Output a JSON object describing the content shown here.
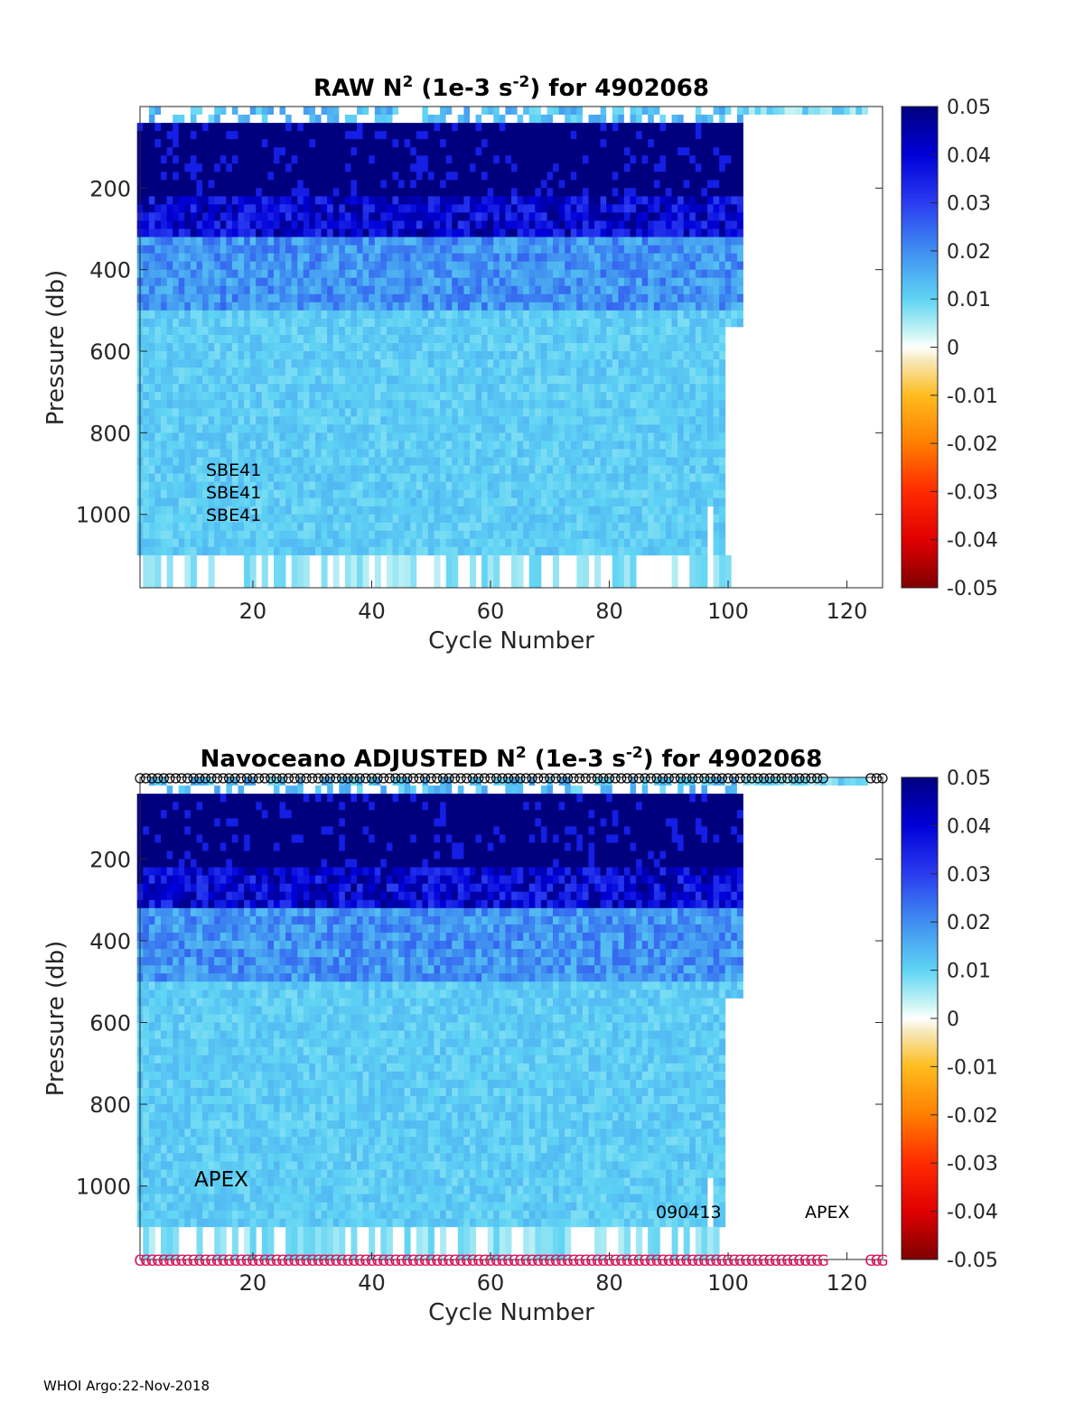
{
  "footer": "WHOI Argo:22-Nov-2018",
  "colorbar": {
    "ticks": [
      "0.05",
      "0.04",
      "0.03",
      "0.02",
      "0.01",
      "0",
      "-0.01",
      "-0.02",
      "-0.03",
      "-0.04",
      "-0.05"
    ],
    "range": [
      -0.05,
      0.05
    ]
  },
  "chart_data": [
    {
      "type": "heatmap",
      "title": {
        "prefix": "RAW N",
        "sup1": "2",
        "mid": " (1e-3 s",
        "sup2": "-2",
        "suffix": ") for 4902068"
      },
      "xlabel": "Cycle Number",
      "ylabel": "Pressure (db)",
      "xlim": [
        1,
        126
      ],
      "ylim": [
        1180,
        0
      ],
      "xticks": [
        "20",
        "40",
        "60",
        "80",
        "100",
        "120"
      ],
      "yticks": [
        "200",
        "400",
        "600",
        "800",
        "1000"
      ],
      "last_cycle": 102,
      "annotations": [
        "SBE41",
        "SBE41",
        "SBE41"
      ],
      "colorscale": "jet-like, dark blue = 0.05, white = 0, dark red = -0.05",
      "profile_by_depth": [
        {
          "p_range": [
            0,
            30
          ],
          "n2": 0.005
        },
        {
          "p_range": [
            30,
            210
          ],
          "n2": 0.05
        },
        {
          "p_range": [
            210,
            320
          ],
          "n2": 0.035
        },
        {
          "p_range": [
            320,
            500
          ],
          "n2": 0.02
        },
        {
          "p_range": [
            500,
            1100
          ],
          "n2": 0.01
        }
      ]
    },
    {
      "type": "heatmap",
      "title": {
        "prefix": "Navoceano  ADJUSTED N",
        "sup1": "2",
        "mid": " (1e-3 s",
        "sup2": "-2",
        "suffix": ") for 4902068"
      },
      "xlabel": "Cycle Number",
      "ylabel": "Pressure (db)",
      "xlim": [
        1,
        126
      ],
      "ylim": [
        1180,
        0
      ],
      "xticks": [
        "20",
        "40",
        "60",
        "80",
        "100",
        "120"
      ],
      "yticks": [
        "200",
        "400",
        "600",
        "800",
        "1000"
      ],
      "last_cycle": 102,
      "annotations": [
        "APEX",
        "090413",
        "APEX"
      ],
      "top_marker": "o",
      "bottom_marker": "G",
      "colorscale": "jet-like, dark blue = 0.05, white = 0, dark red = -0.05",
      "profile_by_depth": [
        {
          "p_range": [
            0,
            30
          ],
          "n2": 0.005
        },
        {
          "p_range": [
            30,
            210
          ],
          "n2": 0.05
        },
        {
          "p_range": [
            210,
            320
          ],
          "n2": 0.035
        },
        {
          "p_range": [
            320,
            500
          ],
          "n2": 0.02
        },
        {
          "p_range": [
            500,
            1100
          ],
          "n2": 0.01
        }
      ]
    }
  ]
}
